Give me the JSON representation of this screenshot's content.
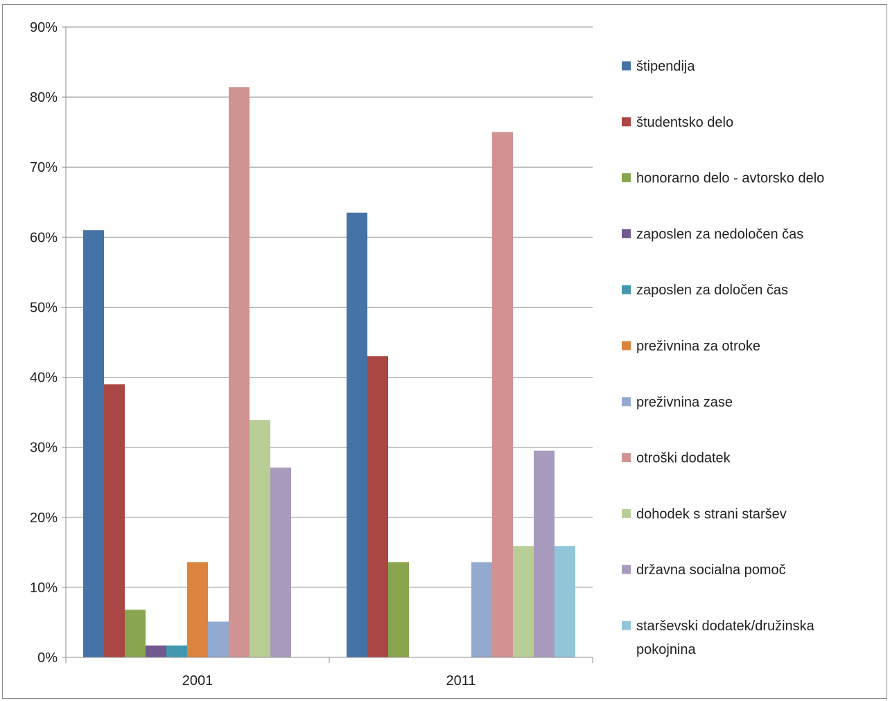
{
  "chart_data": {
    "type": "bar",
    "title": "",
    "xlabel": "",
    "ylabel": "",
    "ylim": [
      0,
      90
    ],
    "y_ticks": [
      "0%",
      "10%",
      "20%",
      "30%",
      "40%",
      "50%",
      "60%",
      "70%",
      "80%",
      "90%"
    ],
    "y_unit": "%",
    "grid": true,
    "legend_position": "right",
    "categories": [
      "2001",
      "2011"
    ],
    "series": [
      {
        "name": "štipendija",
        "color": "#4572A7",
        "values": [
          61.0,
          63.5
        ]
      },
      {
        "name": "študentsko delo",
        "color": "#AA4643",
        "values": [
          39.0,
          43.0
        ]
      },
      {
        "name": "honorarno delo - avtorsko delo",
        "color": "#89A54E",
        "values": [
          6.8,
          13.6
        ]
      },
      {
        "name": "zaposlen za nedoločen čas",
        "color": "#71588F",
        "values": [
          1.7,
          0
        ]
      },
      {
        "name": "zaposlen za določen čas",
        "color": "#4198AF",
        "values": [
          1.7,
          0
        ]
      },
      {
        "name": "preživnina za otroke",
        "color": "#DB843D",
        "values": [
          13.6,
          0
        ]
      },
      {
        "name": "preživnina zase",
        "color": "#93A9CF",
        "values": [
          5.1,
          13.6
        ]
      },
      {
        "name": "otroški dodatek",
        "color": "#D19392",
        "values": [
          81.4,
          75.0
        ]
      },
      {
        "name": "dohodek s strani staršev",
        "color": "#B9CD96",
        "values": [
          33.9,
          15.9
        ]
      },
      {
        "name": "državna socialna pomoč",
        "color": "#A99BBD",
        "values": [
          27.1,
          29.5
        ]
      },
      {
        "name": "starševski dodatek/družinska pokojnina",
        "legend_lines": [
          "starševski dodatek/družinska",
          "pokojnina"
        ],
        "color": "#92C5D8",
        "values": [
          0,
          15.9
        ]
      }
    ]
  }
}
